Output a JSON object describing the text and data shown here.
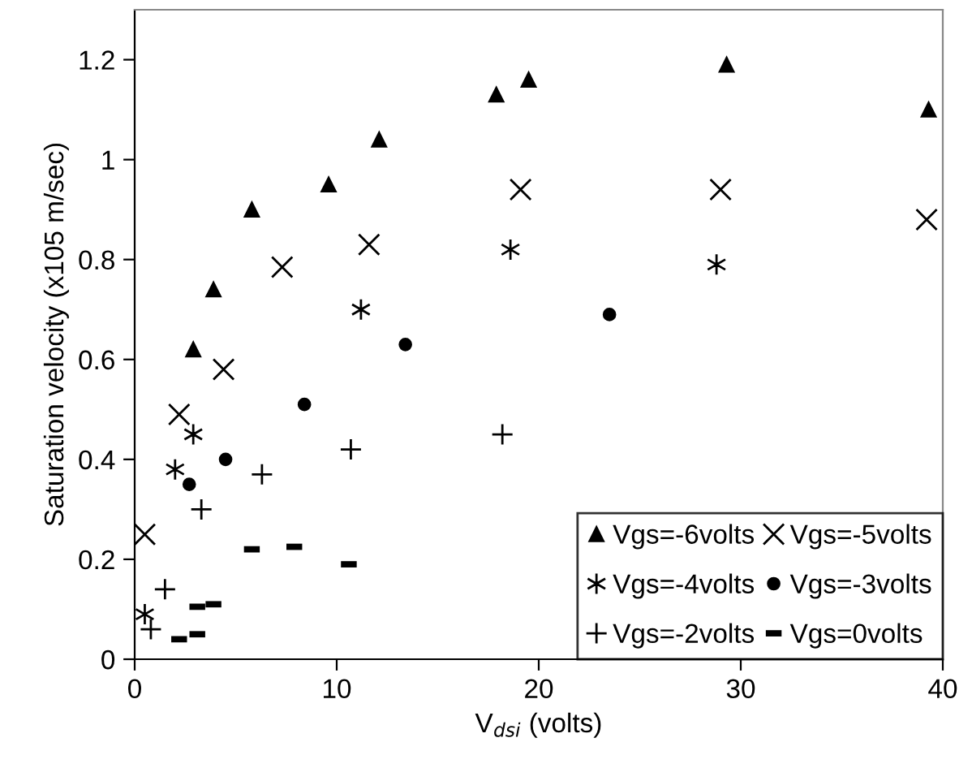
{
  "chart_data": {
    "type": "scatter",
    "xlabel": "V$_{dsi}$ (volts)",
    "ylabel": "Saturation velocity (x105 m/sec)",
    "xlim": [
      0,
      40
    ],
    "xticks": [
      0,
      10,
      20,
      30,
      40
    ],
    "ylim": [
      0,
      1.3
    ],
    "yticks": [
      0,
      0.2,
      0.4,
      0.6,
      0.8,
      {
        "value": 1,
        "label": "1"
      },
      1.2
    ],
    "grid": false,
    "legend": "bottom right",
    "series": [
      {
        "name": "Vgs=-6volts",
        "color": "#000000",
        "marker": "triangle",
        "x": [
          2.9,
          3.9,
          5.8,
          9.6,
          12.1,
          17.9,
          19.5,
          29.3,
          39.3
        ],
        "values": [
          0.62,
          0.74,
          0.9,
          0.95,
          1.04,
          1.13,
          1.16,
          1.19,
          1.1
        ]
      },
      {
        "name": "Vgs=-5volts",
        "color": "#000000",
        "marker": "cross",
        "x": [
          0.5,
          2.2,
          4.4,
          7.3,
          11.6,
          19.1,
          29.0,
          39.2
        ],
        "values": [
          0.25,
          0.49,
          0.58,
          0.785,
          0.83,
          0.94,
          0.94,
          0.88
        ]
      },
      {
        "name": "Vgs=-4volts",
        "color": "#000000",
        "marker": "cross",
        "x": [
          0.5,
          2.0,
          2.9,
          11.2,
          18.6,
          28.8
        ],
        "values": [
          0.09,
          0.38,
          0.45,
          0.7,
          0.82,
          0.79
        ]
      },
      {
        "name": "Vgs=-3volts",
        "color": "#000000",
        "marker": "circle",
        "x": [
          2.7,
          4.5,
          8.4,
          13.4,
          23.5
        ],
        "values": [
          0.35,
          0.4,
          0.51,
          0.63,
          0.69
        ]
      },
      {
        "name": "Vgs=-2volts",
        "color": "#000000",
        "marker": "plus",
        "x": [
          0.8,
          1.5,
          3.3,
          6.3,
          10.7,
          18.2
        ],
        "values": [
          0.06,
          0.14,
          0.3,
          0.37,
          0.42,
          0.45
        ]
      },
      {
        "name": "Vgs=0volts",
        "color": "#000000",
        "marker": "square",
        "x": [
          2.2,
          3.1,
          3.1,
          3.9,
          5.8,
          7.9,
          10.6
        ],
        "values": [
          0.04,
          0.05,
          0.105,
          0.11,
          0.22,
          0.225,
          0.19
        ]
      }
    ]
  }
}
